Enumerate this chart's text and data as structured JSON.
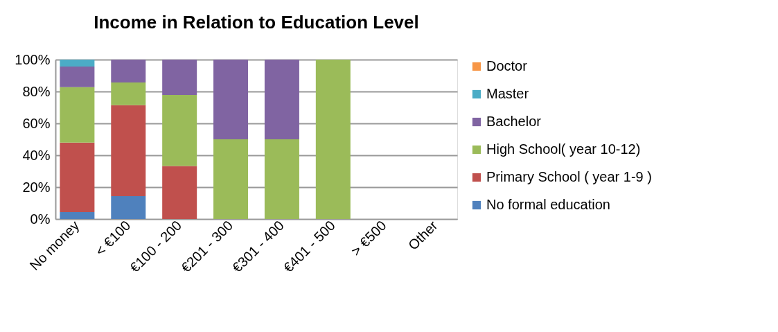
{
  "chart_data": {
    "type": "bar",
    "title": "Income in Relation to Education Level",
    "stacked": true,
    "categories": [
      "No money",
      "< €100",
      "€100 - 200",
      "€201 - 300",
      "€301 - 400",
      "€401 - 500",
      "> €500",
      "Other"
    ],
    "series": [
      {
        "name": "No formal education",
        "color": "#4f81bd",
        "values": [
          4.4,
          14.3,
          null,
          null,
          null,
          null,
          null,
          null
        ]
      },
      {
        "name": "Primary School ( year 1-9 )",
        "color": "#c0504d",
        "values": [
          43.5,
          57.1,
          33.3,
          null,
          null,
          null,
          null,
          null
        ]
      },
      {
        "name": "High School( year 10-12)",
        "color": "#9bbb59",
        "values": [
          34.8,
          14.3,
          44.5,
          50,
          50,
          100,
          null,
          null
        ]
      },
      {
        "name": "Bachelor",
        "color": "#8064a2",
        "values": [
          13,
          14.3,
          22.2,
          50,
          50,
          null,
          null,
          null
        ]
      },
      {
        "name": "Master",
        "color": "#4bacc6",
        "values": [
          4.3,
          null,
          null,
          null,
          null,
          null,
          null,
          null
        ]
      },
      {
        "name": "Doctor",
        "color": "#f79646",
        "values": [
          null,
          null,
          null,
          null,
          null,
          null,
          null,
          null
        ]
      }
    ],
    "ylim": [
      0,
      100
    ],
    "yticks": [
      {
        "value": 0,
        "label": "0%"
      },
      {
        "value": 20,
        "label": "20%"
      },
      {
        "value": 40,
        "label": "40%"
      },
      {
        "value": 60,
        "label": "60%"
      },
      {
        "value": 80,
        "label": "80%"
      },
      {
        "value": 100,
        "label": "100%"
      }
    ],
    "grid": "y",
    "legend": "right"
  }
}
